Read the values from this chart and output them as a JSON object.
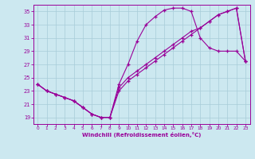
{
  "xlabel": "Windchill (Refroidissement éolien,°C)",
  "background_color": "#cce8f0",
  "grid_color": "#a8ccd8",
  "line_color": "#990099",
  "xlim": [
    -0.5,
    23.5
  ],
  "ylim": [
    18.0,
    36.0
  ],
  "yticks": [
    19,
    21,
    23,
    25,
    27,
    29,
    31,
    33,
    35
  ],
  "xticks": [
    0,
    1,
    2,
    3,
    4,
    5,
    6,
    7,
    8,
    9,
    10,
    11,
    12,
    13,
    14,
    15,
    16,
    17,
    18,
    19,
    20,
    21,
    22,
    23
  ],
  "s1_x": [
    0,
    1,
    2,
    3,
    4,
    5,
    6,
    7,
    8,
    9,
    10,
    11,
    12,
    13,
    14,
    15,
    16,
    17,
    18,
    19,
    20,
    21,
    22,
    23
  ],
  "s1_y": [
    24.0,
    23.0,
    22.5,
    22.0,
    21.5,
    20.5,
    19.5,
    19.0,
    19.0,
    24.0,
    27.0,
    30.5,
    33.0,
    34.2,
    35.2,
    35.5,
    35.5,
    35.0,
    31.0,
    29.5,
    29.0,
    29.0,
    29.0,
    27.5
  ],
  "s2_x": [
    0,
    1,
    2,
    3,
    4,
    5,
    6,
    7,
    8,
    9,
    10,
    11,
    12,
    13,
    14,
    15,
    16,
    17,
    18,
    19,
    20,
    21,
    22,
    23
  ],
  "s2_y": [
    24.0,
    23.0,
    22.5,
    22.0,
    21.5,
    20.5,
    19.5,
    19.0,
    19.0,
    23.0,
    24.5,
    25.5,
    26.5,
    27.5,
    28.5,
    29.5,
    30.5,
    31.5,
    32.5,
    33.5,
    34.5,
    35.0,
    35.5,
    27.5
  ],
  "s3_x": [
    0,
    1,
    2,
    3,
    4,
    5,
    6,
    7,
    8,
    9,
    10,
    11,
    12,
    13,
    14,
    15,
    16,
    17,
    18,
    19,
    20,
    21,
    22,
    23
  ],
  "s3_y": [
    24.0,
    23.0,
    22.5,
    22.0,
    21.5,
    20.5,
    19.5,
    19.0,
    19.0,
    23.5,
    25.0,
    26.0,
    27.0,
    28.0,
    29.0,
    30.0,
    31.0,
    32.0,
    32.5,
    33.5,
    34.5,
    35.0,
    35.5,
    27.5
  ]
}
